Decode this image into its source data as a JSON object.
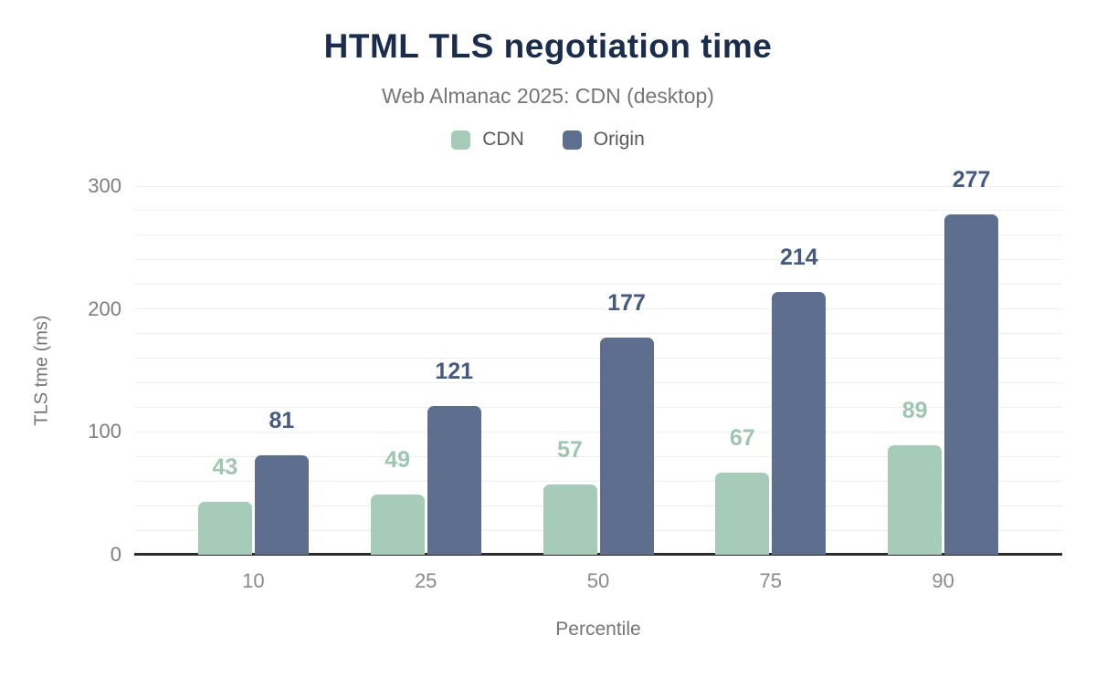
{
  "chart_data": {
    "type": "bar",
    "title": "HTML TLS negotiation time",
    "subtitle": "Web Almanac 2025: CDN (desktop)",
    "categories": [
      "10",
      "25",
      "50",
      "75",
      "90"
    ],
    "series": [
      {
        "name": "CDN",
        "values": [
          43,
          49,
          57,
          67,
          89
        ],
        "color": "#a6cbb8",
        "label_color": "#9ec6b1"
      },
      {
        "name": "Origin",
        "values": [
          81,
          121,
          177,
          214,
          277
        ],
        "color": "#5d6e8e",
        "label_color": "#445a80"
      }
    ],
    "xlabel": "Percentile",
    "ylabel": "TLS tme (ms)",
    "ylim": [
      0,
      300
    ],
    "yticks": [
      0,
      100,
      200,
      300
    ],
    "gridline_step": 20,
    "grid": true,
    "legend_position": "top"
  },
  "palette": {
    "background": "#ffffff",
    "title": "#1b2d4d",
    "subtitle": "#757575",
    "tick_label": "#7f7f7f",
    "x_tick_label": "#8a8a8a",
    "axis_title": "#757575",
    "legend_label": "#595959",
    "gridline": "#efefef",
    "axis_line": "#2b2b2b"
  }
}
